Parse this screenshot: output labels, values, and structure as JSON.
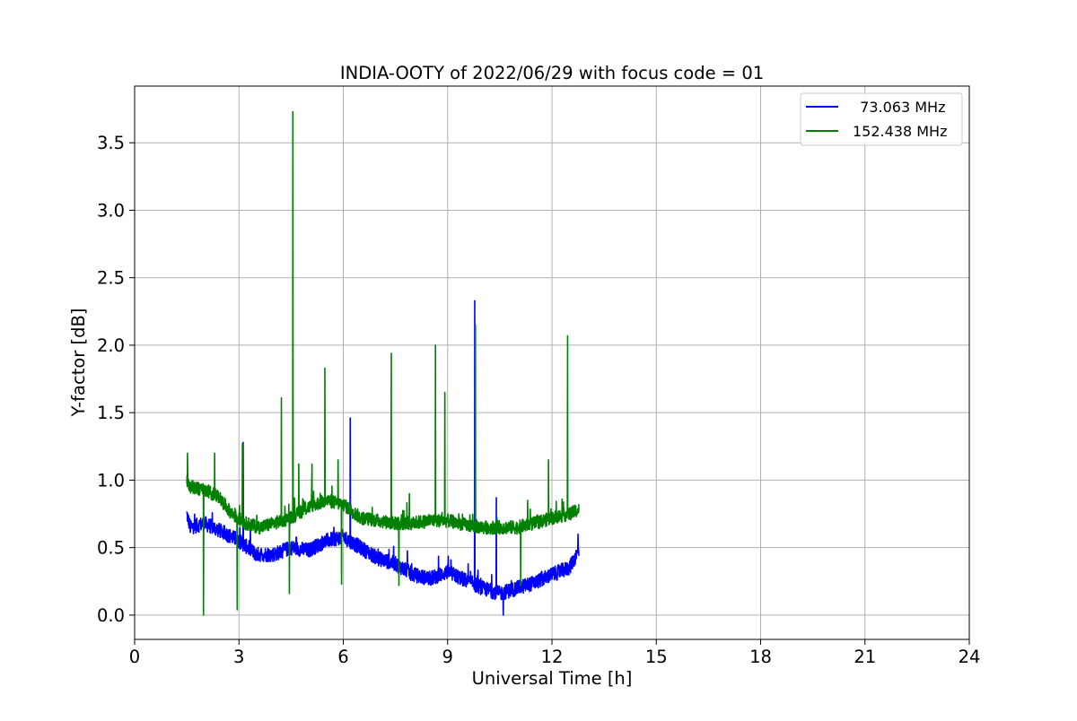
{
  "chart_data": {
    "type": "line",
    "title": "INDIA-OOTY of 2022/06/29 with focus code = 01",
    "xlabel": "Universal Time [h]",
    "ylabel": "Y-factor [dB]",
    "xlim": [
      0,
      24
    ],
    "ylim": [
      -0.18,
      3.92
    ],
    "xticks": [
      0,
      3,
      6,
      9,
      12,
      15,
      18,
      21,
      24
    ],
    "xtick_labels": [
      "0",
      "3",
      "6",
      "9",
      "12",
      "15",
      "18",
      "21",
      "24"
    ],
    "yticks": [
      0.0,
      0.5,
      1.0,
      1.5,
      2.0,
      2.5,
      3.0,
      3.5
    ],
    "ytick_labels": [
      "0.0",
      "0.5",
      "1.0",
      "1.5",
      "2.0",
      "2.5",
      "3.0",
      "3.5"
    ],
    "grid": true,
    "legend_position": "top-right",
    "series": [
      {
        "name": "  73.063 MHz",
        "color": "#0000ff",
        "baseline": [
          [
            1.5,
            0.75
          ],
          [
            1.6,
            0.65
          ],
          [
            2.0,
            0.68
          ],
          [
            2.5,
            0.62
          ],
          [
            3.0,
            0.55
          ],
          [
            3.5,
            0.45
          ],
          [
            4.0,
            0.45
          ],
          [
            4.5,
            0.5
          ],
          [
            5.0,
            0.48
          ],
          [
            5.5,
            0.55
          ],
          [
            6.0,
            0.58
          ],
          [
            6.5,
            0.5
          ],
          [
            7.0,
            0.42
          ],
          [
            7.5,
            0.38
          ],
          [
            8.0,
            0.3
          ],
          [
            8.5,
            0.27
          ],
          [
            9.0,
            0.32
          ],
          [
            9.5,
            0.26
          ],
          [
            10.0,
            0.2
          ],
          [
            10.5,
            0.16
          ],
          [
            11.0,
            0.2
          ],
          [
            11.5,
            0.24
          ],
          [
            12.0,
            0.3
          ],
          [
            12.5,
            0.35
          ],
          [
            12.78,
            0.48
          ]
        ],
        "noise": 0.055,
        "spikes": [
          [
            3.12,
            1.28
          ],
          [
            6.2,
            1.46
          ],
          [
            9.78,
            2.33
          ],
          [
            10.4,
            0.87
          ],
          [
            12.75,
            0.6
          ]
        ],
        "dips": [
          [
            10.6,
            0.0
          ]
        ]
      },
      {
        "name": "152.438 MHz",
        "color": "#008000",
        "baseline": [
          [
            1.5,
            1.0
          ],
          [
            1.6,
            0.95
          ],
          [
            2.0,
            0.93
          ],
          [
            2.4,
            0.88
          ],
          [
            2.8,
            0.75
          ],
          [
            3.2,
            0.68
          ],
          [
            3.6,
            0.65
          ],
          [
            4.0,
            0.68
          ],
          [
            4.5,
            0.72
          ],
          [
            5.0,
            0.8
          ],
          [
            5.5,
            0.85
          ],
          [
            6.0,
            0.82
          ],
          [
            6.5,
            0.72
          ],
          [
            7.0,
            0.7
          ],
          [
            7.5,
            0.68
          ],
          [
            8.0,
            0.68
          ],
          [
            8.5,
            0.7
          ],
          [
            9.0,
            0.7
          ],
          [
            9.5,
            0.67
          ],
          [
            10.0,
            0.65
          ],
          [
            10.5,
            0.65
          ],
          [
            11.0,
            0.65
          ],
          [
            11.5,
            0.68
          ],
          [
            12.0,
            0.72
          ],
          [
            12.5,
            0.75
          ],
          [
            12.78,
            0.78
          ]
        ],
        "noise": 0.05,
        "spikes": [
          [
            1.52,
            1.2
          ],
          [
            2.3,
            1.2
          ],
          [
            3.1,
            1.27
          ],
          [
            4.22,
            1.61
          ],
          [
            4.55,
            3.73
          ],
          [
            4.72,
            1.12
          ],
          [
            5.1,
            1.12
          ],
          [
            5.47,
            1.83
          ],
          [
            5.85,
            1.15
          ],
          [
            7.38,
            1.94
          ],
          [
            7.9,
            0.9
          ],
          [
            8.65,
            2.0
          ],
          [
            8.92,
            1.65
          ],
          [
            9.8,
            2.15
          ],
          [
            11.3,
            0.85
          ],
          [
            11.9,
            1.15
          ],
          [
            12.45,
            2.07
          ]
        ],
        "dips": [
          [
            1.98,
            0.0
          ],
          [
            2.95,
            0.04
          ],
          [
            4.45,
            0.16
          ],
          [
            5.95,
            0.23
          ],
          [
            7.6,
            0.22
          ],
          [
            11.1,
            0.22
          ]
        ]
      }
    ]
  }
}
